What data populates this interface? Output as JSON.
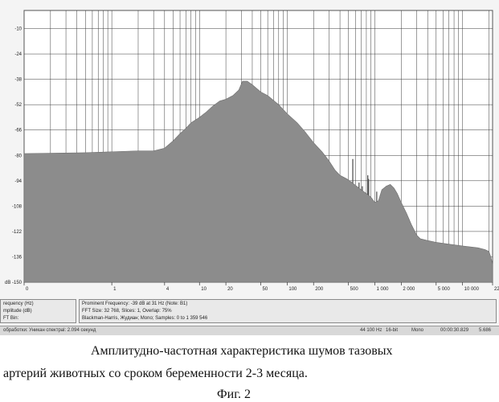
{
  "chart_data": {
    "type": "area",
    "title": "",
    "xlabel": "",
    "ylabel": "",
    "xscale": "log",
    "xlim": [
      0.1,
      22000
    ],
    "ylim": [
      -150,
      0
    ],
    "y_unit": "dB",
    "grid": true,
    "legend": "none",
    "x_ticks": [
      {
        "value": 0.1,
        "label": "0"
      },
      {
        "value": 1,
        "label": "1"
      },
      {
        "value": 4,
        "label": "4"
      },
      {
        "value": 10,
        "label": "10"
      },
      {
        "value": 20,
        "label": "20"
      },
      {
        "value": 50,
        "label": "50"
      },
      {
        "value": 100,
        "label": "100"
      },
      {
        "value": 200,
        "label": "200"
      },
      {
        "value": 500,
        "label": "500"
      },
      {
        "value": 1000,
        "label": "1 000"
      },
      {
        "value": 2000,
        "label": "2 000"
      },
      {
        "value": 5000,
        "label": "5 000"
      },
      {
        "value": 10000,
        "label": "10 000"
      },
      {
        "value": 22000,
        "label": "22 0"
      }
    ],
    "y_ticks": [
      {
        "value": -10,
        "label": "-10"
      },
      {
        "value": -24,
        "label": "-24"
      },
      {
        "value": -38,
        "label": "-38"
      },
      {
        "value": -52,
        "label": "-52"
      },
      {
        "value": -66,
        "label": "-66"
      },
      {
        "value": -80,
        "label": "-80"
      },
      {
        "value": -94,
        "label": "-94"
      },
      {
        "value": -108,
        "label": "-108"
      },
      {
        "value": -122,
        "label": "-122"
      },
      {
        "value": -136,
        "label": "-136"
      },
      {
        "value": -150,
        "label": "dB -150"
      }
    ],
    "series": [
      {
        "color": "#8c8c8c",
        "points": [
          [
            0.1,
            -79
          ],
          [
            0.5,
            -78.5
          ],
          [
            1,
            -78
          ],
          [
            2,
            -77.5
          ],
          [
            3,
            -77.5
          ],
          [
            4,
            -76
          ],
          [
            5,
            -72
          ],
          [
            6,
            -68
          ],
          [
            7,
            -65
          ],
          [
            8,
            -62
          ],
          [
            10,
            -59
          ],
          [
            12,
            -56
          ],
          [
            14,
            -53
          ],
          [
            17,
            -50
          ],
          [
            20,
            -49
          ],
          [
            24,
            -47
          ],
          [
            28,
            -44
          ],
          [
            31,
            -39
          ],
          [
            35,
            -39
          ],
          [
            40,
            -41
          ],
          [
            50,
            -45
          ],
          [
            60,
            -47
          ],
          [
            80,
            -52
          ],
          [
            100,
            -57
          ],
          [
            130,
            -62
          ],
          [
            160,
            -67
          ],
          [
            200,
            -73
          ],
          [
            250,
            -78
          ],
          [
            300,
            -83
          ],
          [
            350,
            -88
          ],
          [
            400,
            -91
          ],
          [
            480,
            -93
          ],
          [
            550,
            -95
          ],
          [
            620,
            -97
          ],
          [
            700,
            -99
          ],
          [
            800,
            -101
          ],
          [
            900,
            -103
          ],
          [
            1000,
            -106
          ],
          [
            1100,
            -105
          ],
          [
            1200,
            -99
          ],
          [
            1350,
            -97
          ],
          [
            1500,
            -96
          ],
          [
            1650,
            -98
          ],
          [
            1800,
            -101
          ],
          [
            2000,
            -106
          ],
          [
            2300,
            -112
          ],
          [
            2600,
            -118
          ],
          [
            3000,
            -124
          ],
          [
            3300,
            -126
          ],
          [
            4000,
            -127
          ],
          [
            5000,
            -128
          ],
          [
            7000,
            -129
          ],
          [
            10000,
            -130
          ],
          [
            15000,
            -131
          ],
          [
            18000,
            -132
          ],
          [
            20000,
            -133
          ],
          [
            21000,
            -136
          ],
          [
            22000,
            -140
          ]
        ],
        "peaks": [
          {
            "x": 560,
            "y": -82
          },
          {
            "x": 660,
            "y": -95
          },
          {
            "x": 720,
            "y": -97
          },
          {
            "x": 830,
            "y": -91
          },
          {
            "x": 850,
            "y": -93
          },
          {
            "x": 1050,
            "y": -100
          },
          {
            "x": 1150,
            "y": -102
          }
        ]
      }
    ]
  },
  "info_panel": {
    "left_lines": [
      "requency (Hz)",
      "mplitude (dB)",
      "FT Bin:"
    ],
    "right_lines": [
      "Prominent Frequency: -39 dB at 31 Hz (Note: B1)",
      "FFT Size: 32 768, Slices: 1, Overlap: 75%",
      "Blackman-Harris, Жудиан; Mono; Samples: 0 to 1 359 546"
    ]
  },
  "status_bar": {
    "left": "обработки: Уникан спектраl: 2.094 секунд",
    "rate": "44 100 Hz",
    "bits": "16-bit",
    "channel": "Mono",
    "time": "00:00:30.829",
    "size": "5.686"
  },
  "caption": {
    "line1": "Амплитудно-частотная характеристика шумов тазовых",
    "line2": "артерий животных со сроком беременности 2-3 месяца.",
    "figure": "Фиг. 2"
  }
}
